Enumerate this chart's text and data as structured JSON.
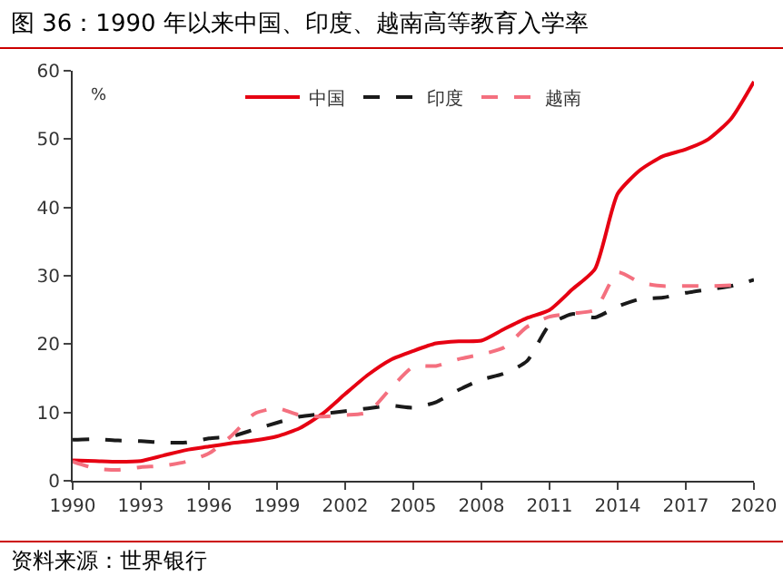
{
  "chart_data": {
    "type": "line",
    "title": "图 36：1990 年以来中国、印度、越南高等教育入学率",
    "ylabel": "%",
    "x": [
      1990,
      1991,
      1992,
      1993,
      1994,
      1995,
      1996,
      1997,
      1998,
      1999,
      2000,
      2001,
      2002,
      2003,
      2004,
      2005,
      2006,
      2007,
      2008,
      2009,
      2010,
      2011,
      2012,
      2013,
      2014,
      2015,
      2016,
      2017,
      2018,
      2019,
      2020
    ],
    "series": [
      {
        "name": "中国",
        "color": "#e60012",
        "line_style": "solid",
        "values": [
          3.0,
          2.9,
          2.8,
          2.9,
          3.7,
          4.5,
          5.0,
          5.5,
          5.9,
          6.5,
          7.7,
          9.8,
          12.7,
          15.5,
          17.7,
          19.0,
          20.1,
          20.4,
          20.5,
          22.2,
          23.8,
          25.0,
          28.0,
          31.0,
          42.0,
          45.5,
          47.5,
          48.5,
          50.0,
          53.0,
          58.4
        ]
      },
      {
        "name": "印度",
        "color": "#1a1a1a",
        "line_style": "dashed",
        "values": [
          6.0,
          6.1,
          5.9,
          5.8,
          5.6,
          5.6,
          6.2,
          6.5,
          7.5,
          8.5,
          9.4,
          9.8,
          10.2,
          10.6,
          11.0,
          10.7,
          11.5,
          13.3,
          14.8,
          15.7,
          17.5,
          22.8,
          24.4,
          23.9,
          25.5,
          26.6,
          26.8,
          27.5,
          28.0,
          28.5,
          29.4
        ]
      },
      {
        "name": "越南",
        "color": "#f4707f",
        "line_style": "dashed",
        "values": [
          2.8,
          1.8,
          1.6,
          2.0,
          2.2,
          2.8,
          4.0,
          6.6,
          9.8,
          10.6,
          9.6,
          9.4,
          9.6,
          10.0,
          13.5,
          16.7,
          16.8,
          17.8,
          18.5,
          19.5,
          22.5,
          24.0,
          24.5,
          25.0,
          30.5,
          29.0,
          28.5,
          28.5,
          28.5,
          28.6,
          null
        ]
      }
    ],
    "xlim": [
      1990,
      2020
    ],
    "xticks": [
      1990,
      1993,
      1996,
      1999,
      2002,
      2005,
      2008,
      2011,
      2014,
      2017,
      2020
    ],
    "ylim": [
      0,
      60
    ],
    "yticks": [
      0,
      10,
      20,
      30,
      40,
      50,
      60
    ],
    "grid": false,
    "legend": "top",
    "marker": "none",
    "annotations": [
      "资料来源：世界银行"
    ]
  }
}
